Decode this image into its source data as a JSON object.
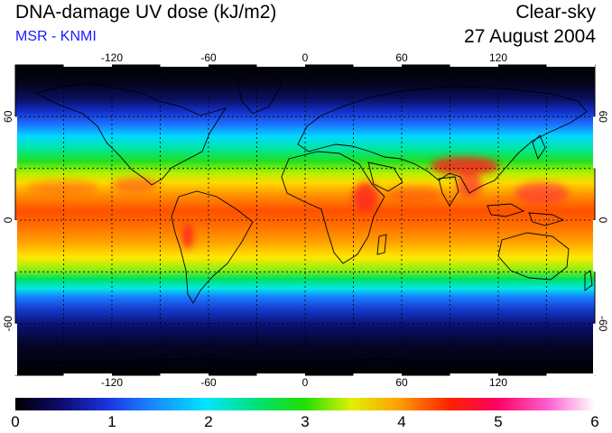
{
  "header": {
    "title": "DNA-damage UV dose (kJ/m2)",
    "subtitle": "MSR - KNMI",
    "subtitle_color": "#1a1aff",
    "sky_condition": "Clear-sky",
    "date": "27 August 2004"
  },
  "map": {
    "projection": "lat-lon",
    "lon_range": [
      -180,
      180
    ],
    "lat_range": [
      -90,
      90
    ],
    "graticule": "dashed",
    "lon_ticks": [
      "-120",
      "-60",
      "0",
      "60",
      "120"
    ],
    "lat_ticks": [
      "60",
      "0",
      "-60"
    ],
    "lat_labels_right": [
      "60",
      "0",
      "-60"
    ]
  },
  "colorbar": {
    "ticks": [
      "0",
      "1",
      "2",
      "3",
      "4",
      "5",
      "6"
    ],
    "colors": [
      "#000000",
      "#101090",
      "#1a4dff",
      "#00e6ff",
      "#00e040",
      "#ffff00",
      "#ff8000",
      "#ff0000",
      "#ff00a0",
      "#ffffff"
    ]
  }
}
